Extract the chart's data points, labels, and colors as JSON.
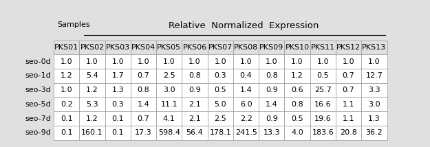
{
  "header_top": "Relative  Normalized  Expression",
  "col_headers": [
    "PKS01",
    "PKS02",
    "PKS03",
    "PKS04",
    "PKS05",
    "PKS06",
    "PKS07",
    "PKS08",
    "PKS09",
    "PKS10",
    "PKS11",
    "PKS12",
    "PKS13"
  ],
  "row_headers": [
    "seo-0d",
    "seo-1d",
    "seo-3d",
    "seo-5d",
    "seo-7d",
    "seo-9d"
  ],
  "data": [
    [
      1.0,
      1.0,
      1.0,
      1.0,
      1.0,
      1.0,
      1.0,
      1.0,
      1.0,
      1.0,
      1.0,
      1.0,
      1.0
    ],
    [
      1.2,
      5.4,
      1.7,
      0.7,
      2.5,
      0.8,
      0.3,
      0.4,
      0.8,
      1.2,
      0.5,
      0.7,
      12.7
    ],
    [
      1.0,
      1.2,
      1.3,
      0.8,
      3.0,
      0.9,
      0.5,
      1.4,
      0.9,
      0.6,
      25.7,
      0.7,
      3.3
    ],
    [
      0.2,
      5.3,
      0.3,
      1.4,
      11.1,
      2.1,
      5.0,
      6.0,
      1.4,
      0.8,
      16.6,
      1.1,
      3.0
    ],
    [
      0.1,
      1.2,
      0.1,
      0.7,
      4.1,
      2.1,
      2.5,
      2.2,
      0.9,
      0.5,
      19.6,
      1.1,
      1.3
    ],
    [
      0.1,
      160.1,
      0.1,
      17.3,
      598.4,
      56.4,
      178.1,
      241.5,
      13.3,
      4.0,
      183.6,
      20.8,
      36.2
    ]
  ],
  "bg_color": "#e0e0e0",
  "fontsize": 8.0,
  "title_fontsize": 9.5
}
